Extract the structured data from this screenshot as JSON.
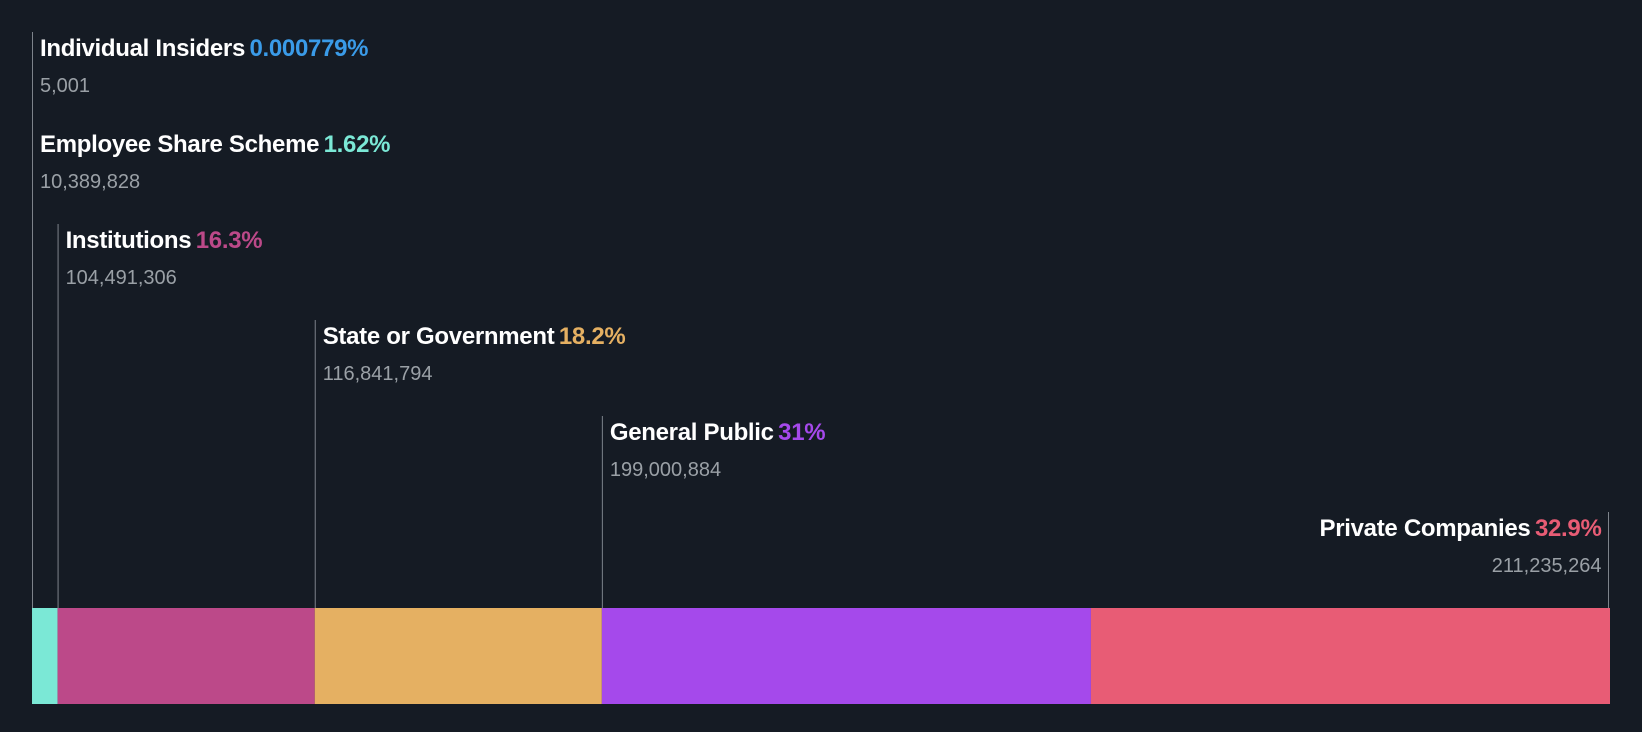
{
  "chart_data": {
    "type": "bar",
    "orientation": "horizontal-stacked",
    "title": "",
    "xlabel": "",
    "ylabel": "",
    "xlim": [
      0,
      100
    ],
    "segments": [
      {
        "name": "Individual Insiders",
        "percent_label": "0.000779%",
        "shares_label": "5,001",
        "value": 0.000779,
        "color": "#3a9be8"
      },
      {
        "name": "Employee Share Scheme",
        "percent_label": "1.62%",
        "shares_label": "10,389,828",
        "value": 1.62,
        "color": "#7be8d6"
      },
      {
        "name": "Institutions",
        "percent_label": "16.3%",
        "shares_label": "104,491,306",
        "value": 16.3,
        "color": "#bc4989"
      },
      {
        "name": "State or Government",
        "percent_label": "18.2%",
        "shares_label": "116,841,794",
        "value": 18.2,
        "color": "#e5b062"
      },
      {
        "name": "General Public",
        "percent_label": "31%",
        "shares_label": "199,000,884",
        "value": 31.0,
        "color": "#a549eb"
      },
      {
        "name": "Private Companies",
        "percent_label": "32.9%",
        "shares_label": "211,235,264",
        "value": 32.9,
        "color": "#e85c75"
      }
    ]
  }
}
